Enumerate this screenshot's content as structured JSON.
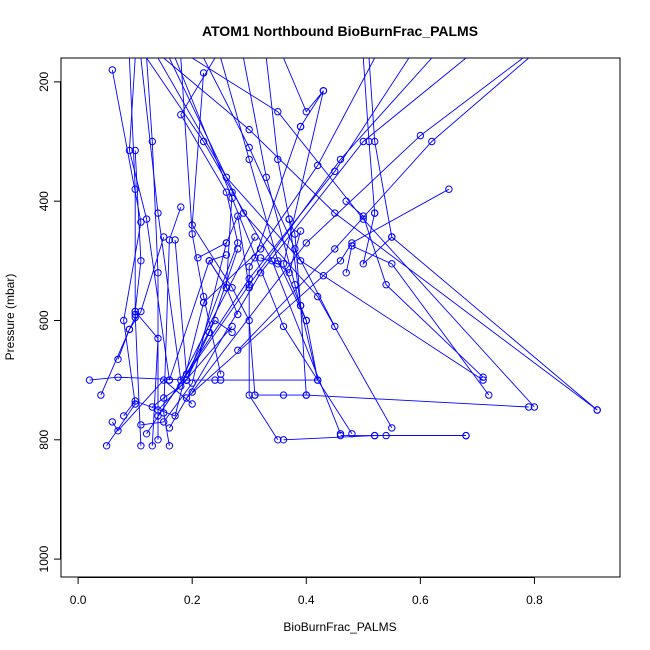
{
  "chart_data": {
    "type": "line",
    "title": "ATOM1 Northbound BioBurnFrac_PALMS",
    "xlabel": "BioBurnFrac_PALMS",
    "ylabel": "Pressure (mbar)",
    "xlim": [
      -0.03,
      0.95
    ],
    "ylim": [
      1030,
      160
    ],
    "y_reversed": true,
    "x_ticks": [
      "0.0",
      "0.2",
      "0.4",
      "0.6",
      "0.8"
    ],
    "y_ticks": [
      "200",
      "400",
      "600",
      "800",
      "1000"
    ],
    "x_tick_values": [
      0,
      0.2,
      0.4,
      0.6,
      0.8
    ],
    "y_tick_values": [
      200,
      400,
      600,
      800,
      1000
    ],
    "grid": false,
    "legend": "none",
    "line_color": "#0000ff",
    "marker": "open-circle",
    "series": [
      {
        "x": [
          0.24,
          0.18,
          0.26,
          0.28,
          0.19
        ],
        "y": [
          160,
          255,
          385,
          470,
          700
        ]
      },
      {
        "x": [
          0.06,
          0.11,
          0.08,
          0.1,
          0.05
        ],
        "y": [
          180,
          435,
          600,
          740,
          810
        ]
      },
      {
        "x": [
          0.22,
          0.2,
          0.27,
          0.3,
          0.31
        ],
        "y": [
          185,
          440,
          545,
          600,
          725
        ]
      },
      {
        "x": [
          0.43,
          0.36,
          0.4,
          0.42,
          0.24
        ],
        "y": [
          215,
          505,
          600,
          700,
          700
        ]
      },
      {
        "x": [
          0.1,
          0.11,
          0.1,
          0.14,
          0.13
        ],
        "y": [
          315,
          500,
          585,
          630,
          810
        ]
      },
      {
        "x": [
          0.39,
          0.31,
          0.3,
          0.3,
          0.35
        ],
        "y": [
          275,
          495,
          510,
          725,
          800
        ]
      },
      {
        "x": [
          0.65,
          0.48,
          0.46,
          0.43,
          0.19
        ],
        "y": [
          380,
          470,
          500,
          525,
          730
        ]
      },
      {
        "x": [
          0.47,
          0.5,
          0.54,
          0.71
        ],
        "y": [
          400,
          425,
          540,
          695
        ]
      },
      {
        "x": [
          0.52,
          0.5,
          0.55,
          0.91
        ],
        "y": [
          420,
          505,
          460,
          750
        ]
      },
      {
        "x": [
          0.18,
          0.16,
          0.15,
          0.16
        ],
        "y": [
          410,
          465,
          755,
          810
        ]
      },
      {
        "x": [
          0.37,
          0.38,
          0.39,
          0.4
        ],
        "y": [
          430,
          455,
          575,
          725
        ]
      },
      {
        "x": [
          0.39,
          0.37,
          0.35,
          0.32
        ],
        "y": [
          450,
          520,
          505,
          495
        ]
      },
      {
        "x": [
          0.47,
          0.48,
          0.55,
          0.72
        ],
        "y": [
          520,
          475,
          505,
          725
        ]
      },
      {
        "x": [
          0.31,
          0.36,
          0.4,
          0.79
        ],
        "y": [
          725,
          725,
          725,
          745
        ]
      },
      {
        "x": [
          0.36,
          0.52,
          0.54,
          0.68
        ],
        "y": [
          800,
          793,
          793,
          793
        ]
      },
      {
        "x": [
          0.46,
          0.52,
          0.68
        ],
        "y": [
          793,
          793,
          793
        ]
      },
      {
        "x": [
          0.02,
          0.07,
          0.19,
          0.25
        ],
        "y": [
          700,
          695,
          700,
          700
        ]
      },
      {
        "x": [
          0.04,
          0.09,
          0.1,
          0.1
        ],
        "y": [
          725,
          615,
          595,
          585
        ]
      },
      {
        "x": [
          0.06,
          0.07,
          0.15,
          0.2
        ],
        "y": [
          770,
          785,
          700,
          740
        ]
      },
      {
        "x": [
          0.13,
          0.15,
          0.18,
          0.27
        ],
        "y": [
          745,
          730,
          710,
          610
        ]
      },
      {
        "x": [
          0.08,
          0.1,
          0.17,
          0.22
        ],
        "y": [
          760,
          735,
          760,
          570
        ]
      },
      {
        "x": [
          0.11,
          0.15,
          0.2,
          0.26
        ],
        "y": [
          775,
          770,
          705,
          470
        ]
      },
      {
        "x": [
          0.14,
          0.19,
          0.23,
          0.28
        ],
        "y": [
          750,
          700,
          620,
          480
        ]
      },
      {
        "x": [
          0.07,
          0.09,
          0.11,
          0.15
        ],
        "y": [
          665,
          615,
          585,
          460
        ]
      },
      {
        "x": [
          0.17,
          0.19,
          0.24,
          0.27
        ],
        "y": [
          465,
          690,
          600,
          620
        ]
      },
      {
        "x": [
          0.21,
          0.26,
          0.28,
          0.3
        ],
        "y": [
          495,
          470,
          425,
          545
        ]
      },
      {
        "x": [
          0.27,
          0.26,
          0.23,
          0.26
        ],
        "y": [
          385,
          545,
          500,
          490
        ]
      },
      {
        "x": [
          0.16,
          0.23,
          0.26,
          0.28
        ],
        "y": [
          700,
          500,
          545,
          590
        ]
      },
      {
        "x": [
          0.1,
          0.09,
          0.12,
          0.16
        ],
        "y": [
          160,
          315,
          430,
          700
        ]
      },
      {
        "x": [
          0.11,
          0.14,
          0.18,
          0.31
        ],
        "y": [
          160,
          420,
          700,
          460
        ]
      },
      {
        "x": [
          0.12,
          0.22,
          0.34,
          0.46
        ],
        "y": [
          160,
          300,
          500,
          790
        ]
      },
      {
        "x": [
          0.14,
          0.26,
          0.39,
          0.71
        ],
        "y": [
          160,
          360,
          500,
          700
        ]
      },
      {
        "x": [
          0.15,
          0.3,
          0.45,
          0.91
        ],
        "y": [
          160,
          280,
          420,
          750
        ]
      },
      {
        "x": [
          0.16,
          0.29,
          0.42,
          0.55
        ],
        "y": [
          160,
          420,
          560,
          780
        ]
      },
      {
        "x": [
          0.17,
          0.27,
          0.36,
          0.48
        ],
        "y": [
          160,
          395,
          610,
          790
        ]
      },
      {
        "x": [
          0.18,
          0.2,
          0.22,
          0.25
        ],
        "y": [
          160,
          455,
          560,
          690
        ]
      },
      {
        "x": [
          0.2,
          0.35,
          0.5,
          0.8
        ],
        "y": [
          160,
          250,
          430,
          745
        ]
      },
      {
        "x": [
          0.22,
          0.3,
          0.38,
          0.45
        ],
        "y": [
          160,
          310,
          480,
          610
        ]
      },
      {
        "x": [
          0.25,
          0.3,
          0.35,
          0.4
        ],
        "y": [
          160,
          330,
          500,
          600
        ]
      },
      {
        "x": [
          0.29,
          0.33,
          0.38,
          0.42
        ],
        "y": [
          160,
          360,
          540,
          700
        ]
      },
      {
        "x": [
          0.33,
          0.35,
          0.37,
          0.39
        ],
        "y": [
          160,
          330,
          430,
          575
        ]
      },
      {
        "x": [
          0.36,
          0.4,
          0.43,
          0.39
        ],
        "y": [
          160,
          250,
          215,
          275
        ]
      },
      {
        "x": [
          0.5,
          0.51,
          0.52
        ],
        "y": [
          160,
          300,
          420
        ]
      },
      {
        "x": [
          0.51,
          0.52,
          0.55
        ],
        "y": [
          160,
          300,
          460
        ]
      },
      {
        "x": [
          0.58,
          0.45,
          0.3,
          0.12
        ],
        "y": [
          160,
          350,
          530,
          790
        ]
      },
      {
        "x": [
          0.62,
          0.46,
          0.3,
          0.14
        ],
        "y": [
          160,
          330,
          540,
          760
        ]
      },
      {
        "x": [
          0.68,
          0.5,
          0.32,
          0.16
        ],
        "y": [
          160,
          300,
          520,
          780
        ]
      },
      {
        "x": [
          0.78,
          0.6,
          0.4,
          0.2
        ],
        "y": [
          160,
          290,
          470,
          720
        ]
      },
      {
        "x": [
          0.79,
          0.62,
          0.45,
          0.28
        ],
        "y": [
          160,
          300,
          480,
          650
        ]
      },
      {
        "x": [
          0.52,
          0.42,
          0.32,
          0.22
        ],
        "y": [
          160,
          340,
          480,
          570
        ]
      },
      {
        "x": [
          0.12,
          0.13,
          0.14,
          0.14
        ],
        "y": [
          160,
          300,
          520,
          800
        ]
      },
      {
        "x": [
          0.09,
          0.1,
          0.1,
          0.11
        ],
        "y": [
          160,
          380,
          590,
          810
        ]
      }
    ]
  }
}
